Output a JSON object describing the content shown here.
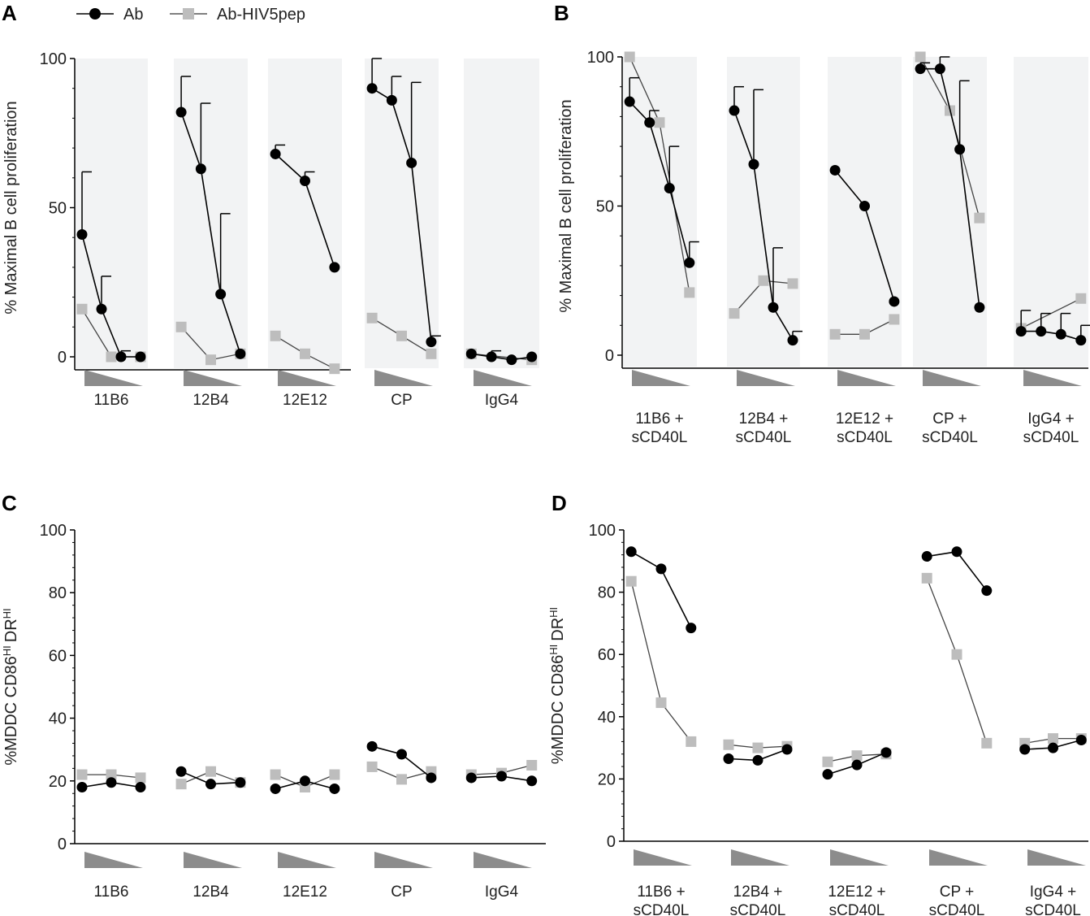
{
  "legend": {
    "series": [
      {
        "name": "Ab",
        "color": "#000000",
        "marker": "circle"
      },
      {
        "name": "Ab-HIV5pep",
        "color": "#bdbdbd",
        "marker": "square"
      }
    ]
  },
  "colors": {
    "band": "#f2f3f4",
    "axis": "#000000",
    "triangle": "#8c8c8c",
    "ab": "#000000",
    "pep": "#bdbdbd"
  },
  "chart_data": [
    {
      "panel": "A",
      "type": "line",
      "ylabel": "% Maximal B cell proliferation",
      "ylabel_sub": "",
      "ylabel_tail": "",
      "ylim": [
        0,
        100
      ],
      "yticks": [
        "0",
        "50",
        "100"
      ],
      "categories": [
        [
          "11B6"
        ],
        [
          "12B4"
        ],
        [
          "12E12"
        ],
        [
          "CP"
        ],
        [
          "IgG4"
        ]
      ],
      "dose_note": "decreasing antibody concentration (wedge) per group",
      "series": [
        {
          "name": "Ab",
          "groups": [
            [
              41,
              16,
              0,
              0
            ],
            [
              82,
              63,
              21,
              1
            ],
            [
              68,
              59,
              30
            ],
            [
              90,
              86,
              65,
              5
            ],
            [
              1,
              0,
              -1,
              0
            ]
          ],
          "error": [
            [
              21,
              11,
              2,
              0
            ],
            [
              12,
              22,
              27,
              0
            ],
            [
              3,
              3,
              0
            ],
            [
              10,
              8,
              27,
              2
            ],
            [
              0,
              2,
              0,
              0
            ]
          ]
        },
        {
          "name": "Ab-HIV5pep",
          "groups": [
            [
              16,
              0,
              0
            ],
            [
              10,
              -1,
              1
            ],
            [
              7,
              1,
              -4
            ],
            [
              13,
              7,
              1
            ],
            [
              1,
              -1
            ]
          ],
          "error": []
        }
      ]
    },
    {
      "panel": "B",
      "type": "line",
      "ylabel": "% Maximal B cell proliferation",
      "ylabel_sub": "",
      "ylabel_tail": "",
      "ylim": [
        0,
        100
      ],
      "yticks": [
        "0",
        "50",
        "100"
      ],
      "categories": [
        [
          "11B6 +",
          "sCD40L"
        ],
        [
          "12B4 +",
          "sCD40L"
        ],
        [
          "12E12 +",
          "sCD40L"
        ],
        [
          "CP +",
          "sCD40L"
        ],
        [
          "IgG4 +",
          "sCD40L"
        ]
      ],
      "dose_note": "decreasing antibody concentration (wedge) per group",
      "series": [
        {
          "name": "Ab",
          "groups": [
            [
              85,
              78,
              56,
              31
            ],
            [
              82,
              64,
              16,
              5
            ],
            [
              62,
              50,
              18
            ],
            [
              96,
              96,
              69,
              16
            ],
            [
              8,
              8,
              7,
              5
            ]
          ],
          "error": [
            [
              8,
              4,
              14,
              7
            ],
            [
              8,
              25,
              20,
              3
            ],
            [
              0,
              0,
              0
            ],
            [
              2,
              4,
              23,
              0
            ],
            [
              7,
              6,
              7,
              5
            ]
          ]
        },
        {
          "name": "Ab-HIV5pep",
          "groups": [
            [
              100,
              78,
              21
            ],
            [
              14,
              25,
              24
            ],
            [
              7,
              7,
              12
            ],
            [
              100,
              82,
              46
            ],
            [
              9,
              19
            ]
          ],
          "error": []
        }
      ]
    },
    {
      "panel": "C",
      "type": "line",
      "ylabel": "%MDDC CD86",
      "ylabel_sub": "HI",
      "ylabel_tail": "DR",
      "ylim": [
        0,
        100
      ],
      "yticks": [
        "0",
        "20",
        "40",
        "60",
        "80",
        "100"
      ],
      "categories": [
        [
          "11B6"
        ],
        [
          "12B4"
        ],
        [
          "12E12"
        ],
        [
          "CP"
        ],
        [
          "IgG4"
        ]
      ],
      "dose_note": "decreasing antibody concentration (wedge) per group",
      "series": [
        {
          "name": "Ab",
          "groups": [
            [
              18,
              19.5,
              18
            ],
            [
              23,
              19,
              19.5
            ],
            [
              17.5,
              20,
              17.5
            ],
            [
              31,
              28.5,
              21
            ],
            [
              21,
              21.5,
              20
            ]
          ],
          "error": []
        },
        {
          "name": "Ab-HIV5pep",
          "groups": [
            [
              22,
              22,
              21
            ],
            [
              19,
              23,
              19.5
            ],
            [
              22,
              18,
              22
            ],
            [
              24.5,
              20.5,
              23
            ],
            [
              22,
              22.5,
              25
            ]
          ],
          "error": []
        }
      ]
    },
    {
      "panel": "D",
      "type": "line",
      "ylabel": "%MDDC CD86",
      "ylabel_sub": "HI",
      "ylabel_tail": "DR",
      "ylim": [
        0,
        100
      ],
      "yticks": [
        "0",
        "20",
        "40",
        "60",
        "80",
        "100"
      ],
      "categories": [
        [
          "11B6 +",
          "sCD40L"
        ],
        [
          "12B4 +",
          "sCD40L"
        ],
        [
          "12E12 +",
          "sCD40L"
        ],
        [
          "CP +",
          "sCD40L"
        ],
        [
          "IgG4 +",
          "sCD40L"
        ]
      ],
      "dose_note": "decreasing antibody concentration (wedge) per group",
      "series": [
        {
          "name": "Ab",
          "groups": [
            [
              93,
              87.5,
              68.5
            ],
            [
              26.5,
              26,
              29.5
            ],
            [
              21.5,
              24.5,
              28.5
            ],
            [
              91.5,
              93,
              80.5
            ],
            [
              29.5,
              30,
              32.5
            ]
          ],
          "error": []
        },
        {
          "name": "Ab-HIV5pep",
          "groups": [
            [
              83.5,
              44.5,
              32
            ],
            [
              31,
              30,
              30.5
            ],
            [
              25.5,
              27.5,
              28
            ],
            [
              84.5,
              60,
              31.5
            ],
            [
              31.5,
              33,
              33
            ]
          ],
          "error": []
        }
      ]
    }
  ]
}
